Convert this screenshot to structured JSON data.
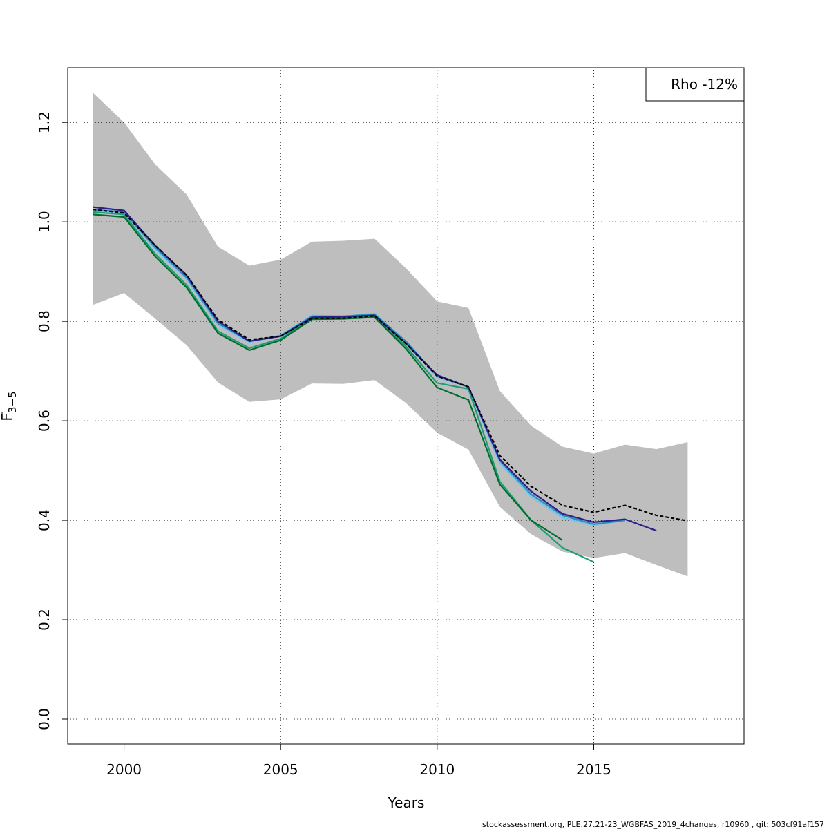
{
  "chart_data": {
    "type": "line",
    "xlabel": "Years",
    "ylabel": "F",
    "ylabel_sub": "3−5",
    "xlim": [
      1998.2,
      2019.8
    ],
    "ylim": [
      -0.05,
      1.31
    ],
    "xticks": [
      2000,
      2005,
      2010,
      2015
    ],
    "yticks": [
      0.0,
      0.2,
      0.4,
      0.6,
      0.8,
      1.0,
      1.2
    ],
    "ytick_labels": [
      "0.0",
      "0.2",
      "0.4",
      "0.6",
      "0.8",
      "1.0",
      "1.2"
    ],
    "grid": true,
    "legend": {
      "text": "Rho -12%",
      "position": "top-right"
    },
    "confidence_band": {
      "x": [
        1999,
        2000,
        2001,
        2002,
        2003,
        2004,
        2005,
        2006,
        2007,
        2008,
        2009,
        2010,
        2011,
        2012,
        2013,
        2014,
        2015,
        2016,
        2017,
        2018
      ],
      "upper": [
        1.26,
        1.2,
        1.115,
        1.055,
        0.95,
        0.912,
        0.924,
        0.96,
        0.962,
        0.966,
        0.907,
        0.84,
        0.827,
        0.66,
        0.59,
        0.548,
        0.534,
        0.552,
        0.543,
        0.557
      ],
      "lower": [
        0.833,
        0.857,
        0.805,
        0.752,
        0.677,
        0.638,
        0.643,
        0.675,
        0.674,
        0.682,
        0.636,
        0.576,
        0.542,
        0.427,
        0.372,
        0.337,
        0.324,
        0.334,
        0.31,
        0.287
      ]
    },
    "series": [
      {
        "color": "#1b9e77",
        "dashed": false,
        "x": [
          1999,
          2000,
          2001,
          2002,
          2003,
          2004,
          2005,
          2006,
          2007,
          2008,
          2009,
          2010,
          2011,
          2012,
          2013,
          2014,
          2015
        ],
        "values": [
          1.02,
          1.015,
          0.935,
          0.873,
          0.78,
          0.746,
          0.765,
          0.806,
          0.806,
          0.81,
          0.75,
          0.676,
          0.664,
          0.478,
          0.4,
          0.345,
          0.316
        ]
      },
      {
        "color": "#006d2c",
        "dashed": false,
        "x": [
          1999,
          2000,
          2001,
          2002,
          2003,
          2004,
          2005,
          2006,
          2007,
          2008,
          2009,
          2010,
          2011,
          2012,
          2013,
          2014
        ],
        "values": [
          1.015,
          1.01,
          0.93,
          0.868,
          0.776,
          0.742,
          0.762,
          0.804,
          0.805,
          0.808,
          0.745,
          0.667,
          0.642,
          0.472,
          0.4,
          0.36
        ]
      },
      {
        "color": "#6ec6ea",
        "dashed": false,
        "x": [
          1999,
          2000,
          2001,
          2002,
          2003,
          2004,
          2005,
          2006,
          2007,
          2008,
          2009,
          2010,
          2011,
          2012,
          2013,
          2014,
          2015,
          2016
        ],
        "values": [
          1.023,
          1.018,
          0.945,
          0.885,
          0.793,
          0.758,
          0.772,
          0.812,
          0.81,
          0.816,
          0.758,
          0.688,
          0.668,
          0.515,
          0.448,
          0.405,
          0.39,
          0.4
        ]
      },
      {
        "color": "#2b8cbe",
        "dashed": false,
        "x": [
          1999,
          2000,
          2001,
          2002,
          2003,
          2004,
          2005,
          2006,
          2007,
          2008,
          2009,
          2010,
          2011,
          2012,
          2013,
          2014,
          2015,
          2016
        ],
        "values": [
          1.025,
          1.02,
          0.948,
          0.888,
          0.796,
          0.76,
          0.771,
          0.81,
          0.81,
          0.814,
          0.76,
          0.69,
          0.668,
          0.52,
          0.452,
          0.41,
          0.392,
          0.4
        ]
      },
      {
        "color": "#2d1e8c",
        "dashed": false,
        "x": [
          1999,
          2000,
          2001,
          2002,
          2003,
          2004,
          2005,
          2006,
          2007,
          2008,
          2009,
          2010,
          2011,
          2012,
          2013,
          2014,
          2015,
          2016,
          2017
        ],
        "values": [
          1.03,
          1.023,
          0.952,
          0.892,
          0.8,
          0.76,
          0.77,
          0.808,
          0.809,
          0.812,
          0.756,
          0.692,
          0.668,
          0.522,
          0.458,
          0.413,
          0.396,
          0.402,
          0.379
        ]
      },
      {
        "color": "#000000",
        "dashed": true,
        "x": [
          1999,
          2000,
          2001,
          2002,
          2003,
          2004,
          2005,
          2006,
          2007,
          2008,
          2009,
          2010,
          2011,
          2012,
          2013,
          2014,
          2015,
          2016,
          2017,
          2018
        ],
        "values": [
          1.025,
          1.018,
          0.952,
          0.893,
          0.803,
          0.763,
          0.77,
          0.806,
          0.806,
          0.811,
          0.755,
          0.69,
          0.668,
          0.53,
          0.468,
          0.43,
          0.416,
          0.43,
          0.41,
          0.399
        ]
      }
    ]
  },
  "footer": "stockassessment.org, PLE.27.21-23_WGBFAS_2019_4changes, r10960 , git: 503cf91af157"
}
